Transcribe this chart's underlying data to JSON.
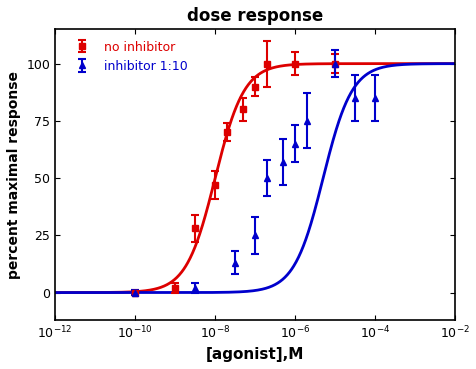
{
  "title": "dose response",
  "xlabel": "[agonist],M",
  "ylabel": "percent maximal response",
  "xlim_log": [
    -12,
    -2
  ],
  "ylim": [
    -12,
    115
  ],
  "yticks": [
    0,
    25,
    50,
    75,
    100
  ],
  "background_color": "#ffffff",
  "series": [
    {
      "label": "no inhibitor",
      "color": "#dd0000",
      "marker": "s",
      "ec50_log": -8.0,
      "hill": 1.2,
      "bottom": 0,
      "top": 100,
      "data_x_log": [
        -10,
        -9,
        -8.5,
        -8,
        -7.7,
        -7.3,
        -7,
        -6.7,
        -6,
        -5
      ],
      "data_y": [
        0,
        2,
        28,
        47,
        70,
        80,
        90,
        100,
        100,
        100
      ],
      "data_yerr": [
        1,
        2,
        6,
        6,
        4,
        5,
        4,
        10,
        5,
        4
      ]
    },
    {
      "label": "inhibitor 1:10",
      "color": "#0000cc",
      "marker": "^",
      "ec50_log": -5.3,
      "hill": 1.2,
      "bottom": 0,
      "top": 100,
      "data_x_log": [
        -10,
        -8.5,
        -7.5,
        -7,
        -6.7,
        -6.3,
        -6,
        -5.7,
        -5,
        -4.5,
        -4
      ],
      "data_y": [
        0,
        2,
        13,
        25,
        50,
        57,
        65,
        75,
        100,
        85,
        85
      ],
      "data_yerr": [
        1,
        2,
        5,
        8,
        8,
        10,
        8,
        12,
        6,
        10,
        10
      ]
    }
  ]
}
